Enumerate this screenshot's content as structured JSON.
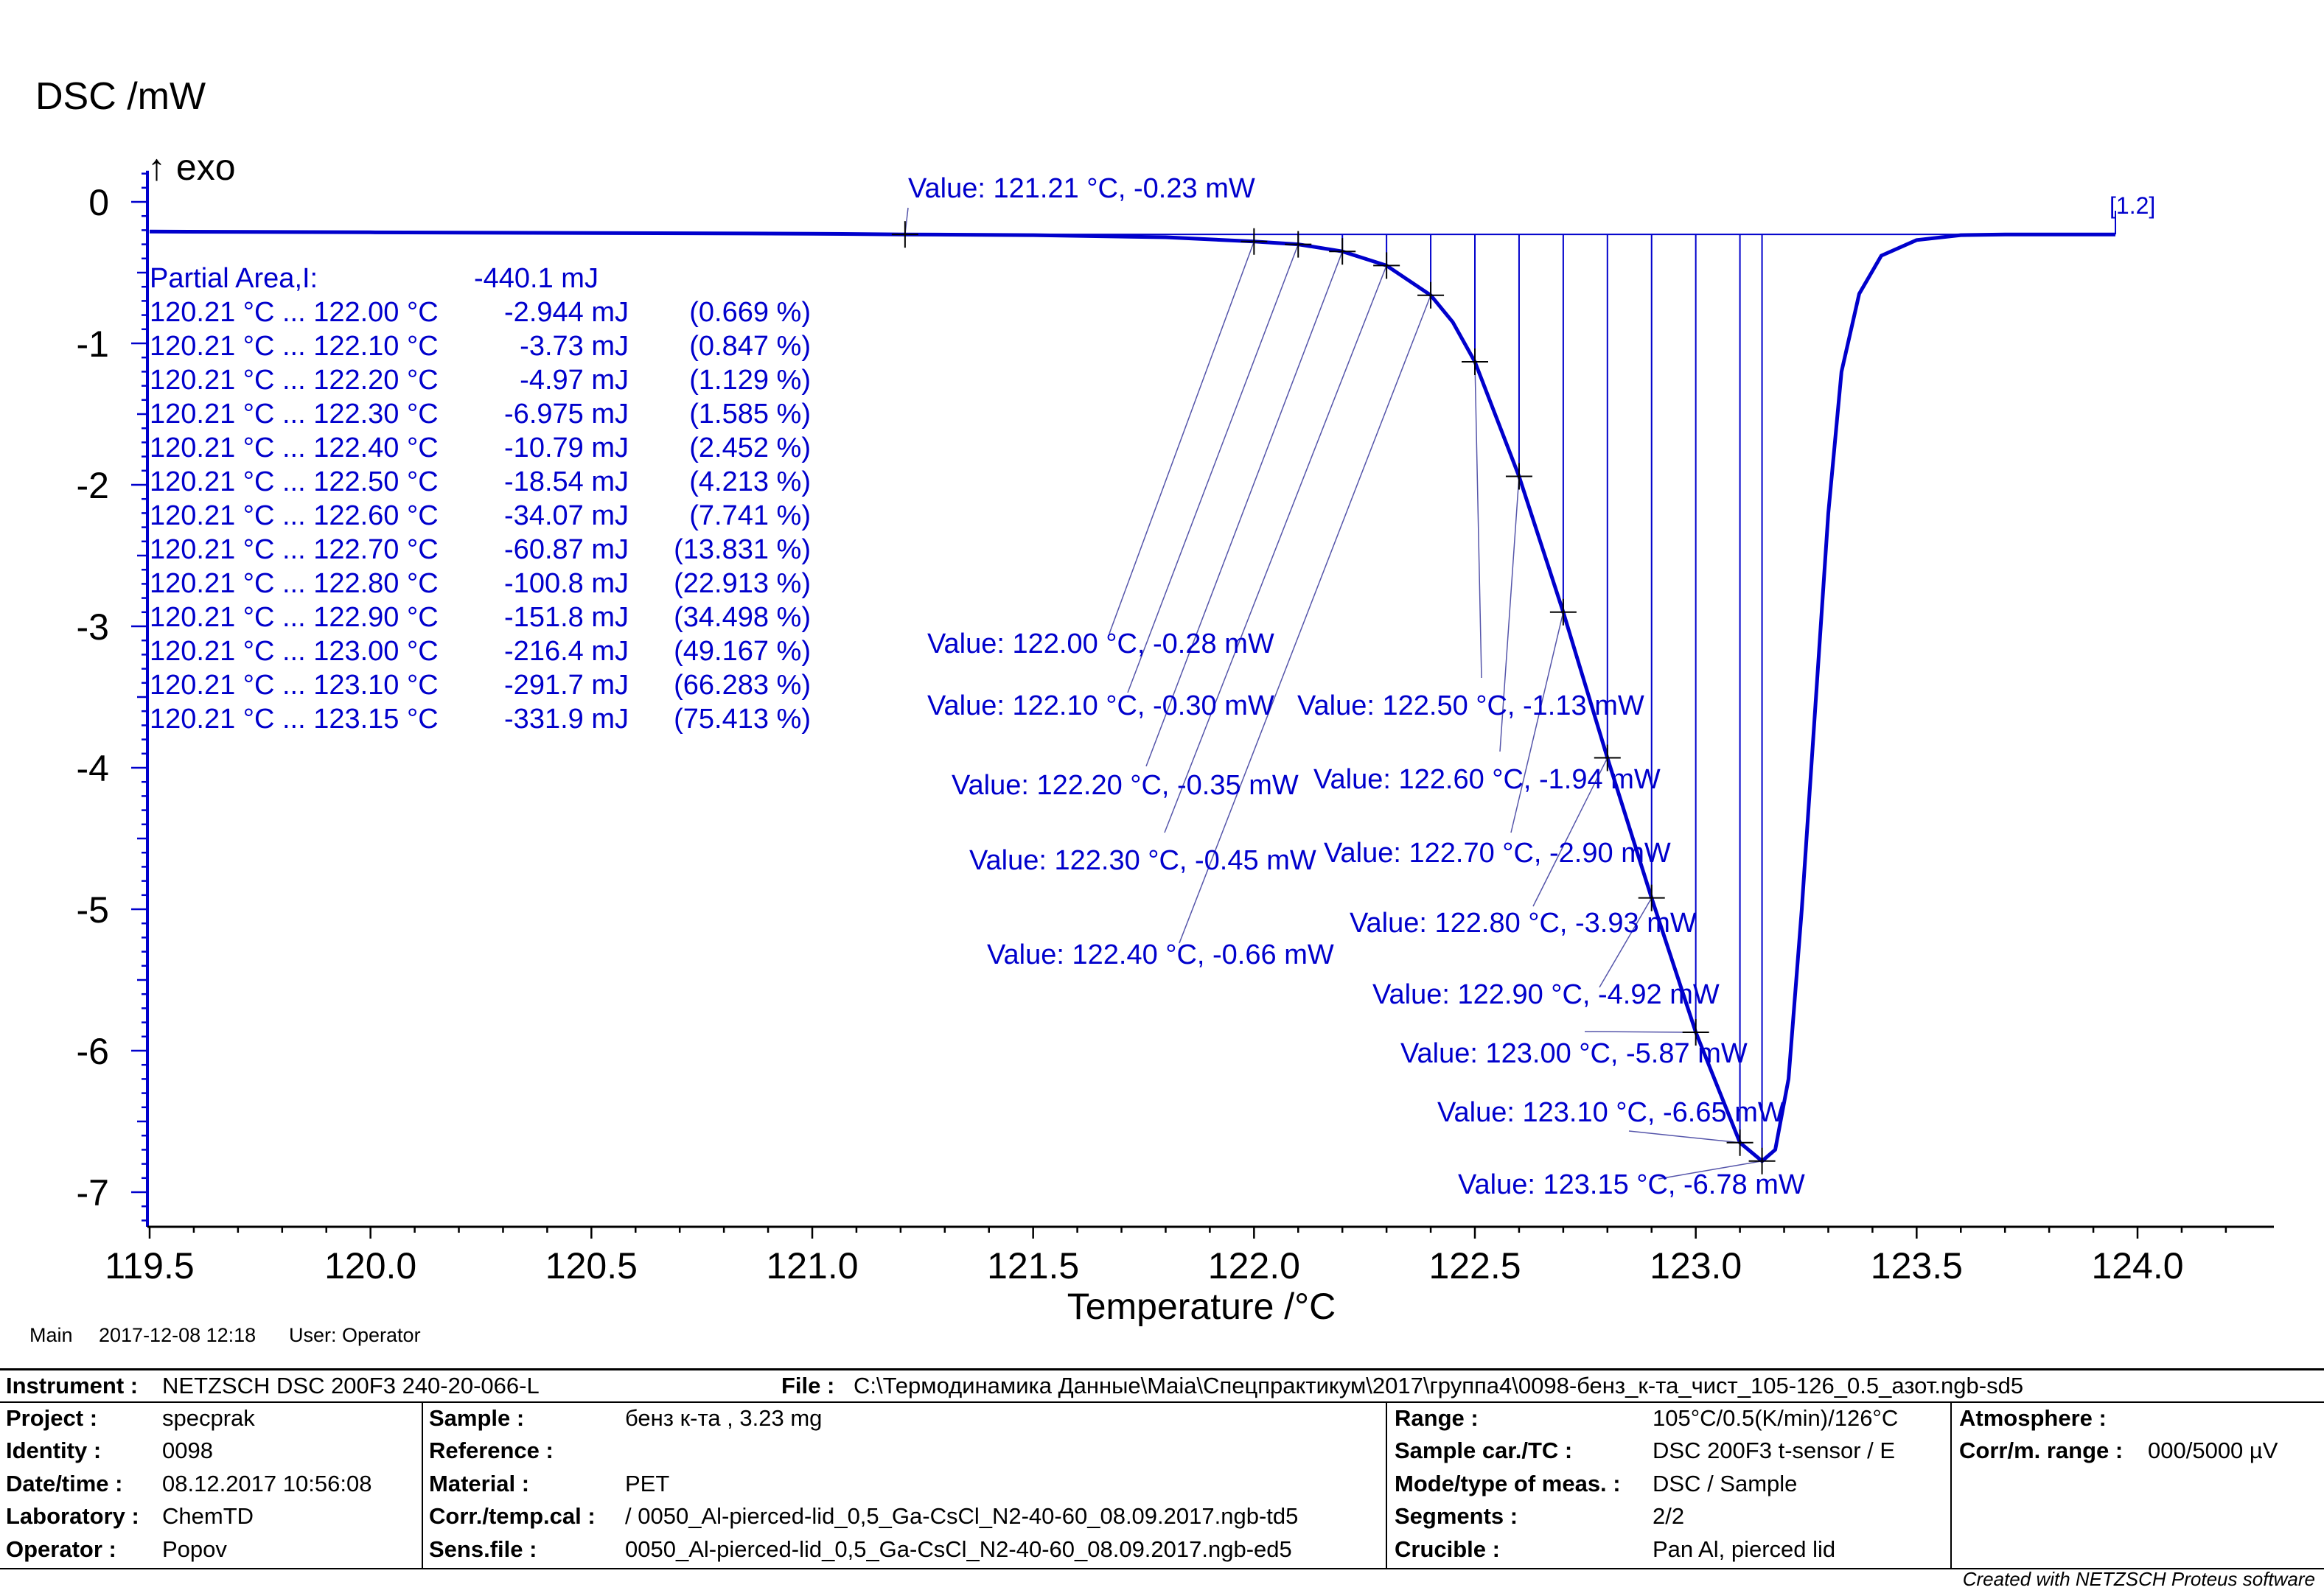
{
  "chart_data": {
    "type": "line",
    "ylabel": "DSC /mW",
    "exo_label": "↑ exo",
    "xlabel": "Temperature /°C",
    "xlim": [
      119.5,
      124.25
    ],
    "ylim": [
      -7.2,
      0.2
    ],
    "x_ticks": [
      "119.5",
      "120.0",
      "120.5",
      "121.0",
      "121.5",
      "122.0",
      "122.5",
      "123.0",
      "123.5",
      "124.0"
    ],
    "y_ticks": [
      "0",
      "-1",
      "-2",
      "-3",
      "-4",
      "-5",
      "-6",
      "-7"
    ],
    "curve_label": "[1.2]",
    "baseline": {
      "x_start": 121.21,
      "x_end": 123.95,
      "y": -0.23
    },
    "series": [
      {
        "points": [
          [
            119.5,
            -0.21
          ],
          [
            120.0,
            -0.215
          ],
          [
            120.5,
            -0.22
          ],
          [
            121.0,
            -0.225
          ],
          [
            121.21,
            -0.23
          ],
          [
            121.5,
            -0.235
          ],
          [
            121.8,
            -0.25
          ],
          [
            122.0,
            -0.28
          ],
          [
            122.1,
            -0.3
          ],
          [
            122.2,
            -0.35
          ],
          [
            122.3,
            -0.45
          ],
          [
            122.4,
            -0.66
          ],
          [
            122.45,
            -0.85
          ],
          [
            122.5,
            -1.13
          ],
          [
            122.6,
            -1.94
          ],
          [
            122.7,
            -2.9
          ],
          [
            122.8,
            -3.93
          ],
          [
            122.9,
            -4.92
          ],
          [
            123.0,
            -5.87
          ],
          [
            123.1,
            -6.65
          ],
          [
            123.15,
            -6.78
          ],
          [
            123.18,
            -6.7
          ],
          [
            123.21,
            -6.2
          ],
          [
            123.24,
            -5.0
          ],
          [
            123.27,
            -3.6
          ],
          [
            123.3,
            -2.2
          ],
          [
            123.33,
            -1.2
          ],
          [
            123.37,
            -0.65
          ],
          [
            123.42,
            -0.38
          ],
          [
            123.5,
            -0.27
          ],
          [
            123.6,
            -0.235
          ],
          [
            123.7,
            -0.23
          ],
          [
            123.95,
            -0.23
          ]
        ]
      }
    ],
    "partial_area": {
      "header_label": "Partial Area,I:",
      "header_value": "-440.1 mJ",
      "rows": [
        {
          "range": "120.21 °C ... 122.00 °C",
          "value": "-2.944 mJ",
          "percent": "(0.669 %)"
        },
        {
          "range": "120.21 °C ... 122.10 °C",
          "value": "-3.73 mJ",
          "percent": "(0.847 %)"
        },
        {
          "range": "120.21 °C ... 122.20 °C",
          "value": "-4.97 mJ",
          "percent": "(1.129 %)"
        },
        {
          "range": "120.21 °C ... 122.30 °C",
          "value": "-6.975 mJ",
          "percent": "(1.585 %)"
        },
        {
          "range": "120.21 °C ... 122.40 °C",
          "value": "-10.79 mJ",
          "percent": "(2.452 %)"
        },
        {
          "range": "120.21 °C ... 122.50 °C",
          "value": "-18.54 mJ",
          "percent": "(4.213 %)"
        },
        {
          "range": "120.21 °C ... 122.60 °C",
          "value": "-34.07 mJ",
          "percent": "(7.741 %)"
        },
        {
          "range": "120.21 °C ... 122.70 °C",
          "value": "-60.87 mJ",
          "percent": "(13.831 %)"
        },
        {
          "range": "120.21 °C ... 122.80 °C",
          "value": "-100.8 mJ",
          "percent": "(22.913 %)"
        },
        {
          "range": "120.21 °C ... 122.90 °C",
          "value": "-151.8 mJ",
          "percent": "(34.498 %)"
        },
        {
          "range": "120.21 °C ... 123.00 °C",
          "value": "-216.4 mJ",
          "percent": "(49.167 %)"
        },
        {
          "range": "120.21 °C ... 123.10 °C",
          "value": "-291.7 mJ",
          "percent": "(66.283 %)"
        },
        {
          "range": "120.21 °C ... 123.15 °C",
          "value": "-331.9 mJ",
          "percent": "(75.413 %)"
        }
      ]
    },
    "markers": [
      {
        "x": 121.21,
        "y": -0.23,
        "label": "Value: 121.21 °C, -0.23 mW"
      },
      {
        "x": 122.0,
        "y": -0.28,
        "label": "Value: 122.00 °C, -0.28 mW"
      },
      {
        "x": 122.1,
        "y": -0.3,
        "label": "Value: 122.10 °C, -0.30 mW"
      },
      {
        "x": 122.2,
        "y": -0.35,
        "label": "Value: 122.20 °C, -0.35 mW"
      },
      {
        "x": 122.3,
        "y": -0.45,
        "label": "Value: 122.30 °C, -0.45 mW"
      },
      {
        "x": 122.4,
        "y": -0.66,
        "label": "Value: 122.40 °C, -0.66 mW"
      },
      {
        "x": 122.5,
        "y": -1.13,
        "label": "Value: 122.50 °C, -1.13 mW"
      },
      {
        "x": 122.6,
        "y": -1.94,
        "label": "Value: 122.60 °C, -1.94 mW"
      },
      {
        "x": 122.7,
        "y": -2.9,
        "label": "Value: 122.70 °C, -2.90 mW"
      },
      {
        "x": 122.8,
        "y": -3.93,
        "label": "Value: 122.80 °C, -3.93 mW"
      },
      {
        "x": 122.9,
        "y": -4.92,
        "label": "Value: 122.90 °C, -4.92 mW"
      },
      {
        "x": 123.0,
        "y": -5.87,
        "label": "Value: 123.00 °C, -5.87 mW"
      },
      {
        "x": 123.1,
        "y": -6.65,
        "label": "Value: 123.10 °C, -6.65 mW"
      },
      {
        "x": 123.15,
        "y": -6.78,
        "label": "Value: 123.15 °C, -6.78 mW"
      }
    ],
    "colors": {
      "curve": "#0000cc",
      "axis": "#000000",
      "text": "#0000cc"
    },
    "grid": false
  },
  "status_line": {
    "mode": "Main",
    "datetime": "2017-12-08 12:18",
    "user": "User: Operator"
  },
  "info_table": {
    "instrument_label": "Instrument :",
    "instrument_value": "NETZSCH DSC 200F3 240-20-066-L",
    "file_label": "File :",
    "file_value": "C:\\Термодинамика Данные\\Maia\\Спецпрактикум\\2017\\группа4\\0098-бенз_к-та_чист_105-126_0.5_азот.ngb-sd5",
    "project_label": "Project :",
    "project_value": "specprak",
    "identity_label": "Identity :",
    "identity_value": "0098",
    "datetime_label": "Date/time :",
    "datetime_value": "08.12.2017 10:56:08",
    "laboratory_label": "Laboratory :",
    "laboratory_value": "ChemTD",
    "operator_label": "Operator :",
    "operator_value": "Popov",
    "sample_label": "Sample :",
    "sample_value": "бенз к-та , 3.23 mg",
    "reference_label": "Reference :",
    "reference_value": "",
    "material_label": "Material :",
    "material_value": "PET",
    "corr_label": "Corr./temp.cal :",
    "corr_value": " / 0050_Al-pierced-lid_0,5_Ga-CsCl_N2-40-60_08.09.2017.ngb-td5",
    "sens_label": "Sens.file :",
    "sens_value": "0050_Al-pierced-lid_0,5_Ga-CsCl_N2-40-60_08.09.2017.ngb-ed5",
    "range_label": "Range :",
    "range_value": "105°C/0.5(K/min)/126°C",
    "samplecar_label": "Sample car./TC :",
    "samplecar_value": "DSC 200F3 t-sensor / E",
    "mode_label": "Mode/type of meas. :",
    "mode_value": "DSC / Sample",
    "segments_label": "Segments :",
    "segments_value": "2/2",
    "crucible_label": "Crucible :",
    "crucible_value": "Pan Al, pierced lid",
    "atmosphere_label": "Atmosphere :",
    "atmosphere_value": "",
    "corrm_label": "Corr/m. range :",
    "corrm_value": "000/5000 µV",
    "credit": "Created with NETZSCH Proteus software"
  }
}
